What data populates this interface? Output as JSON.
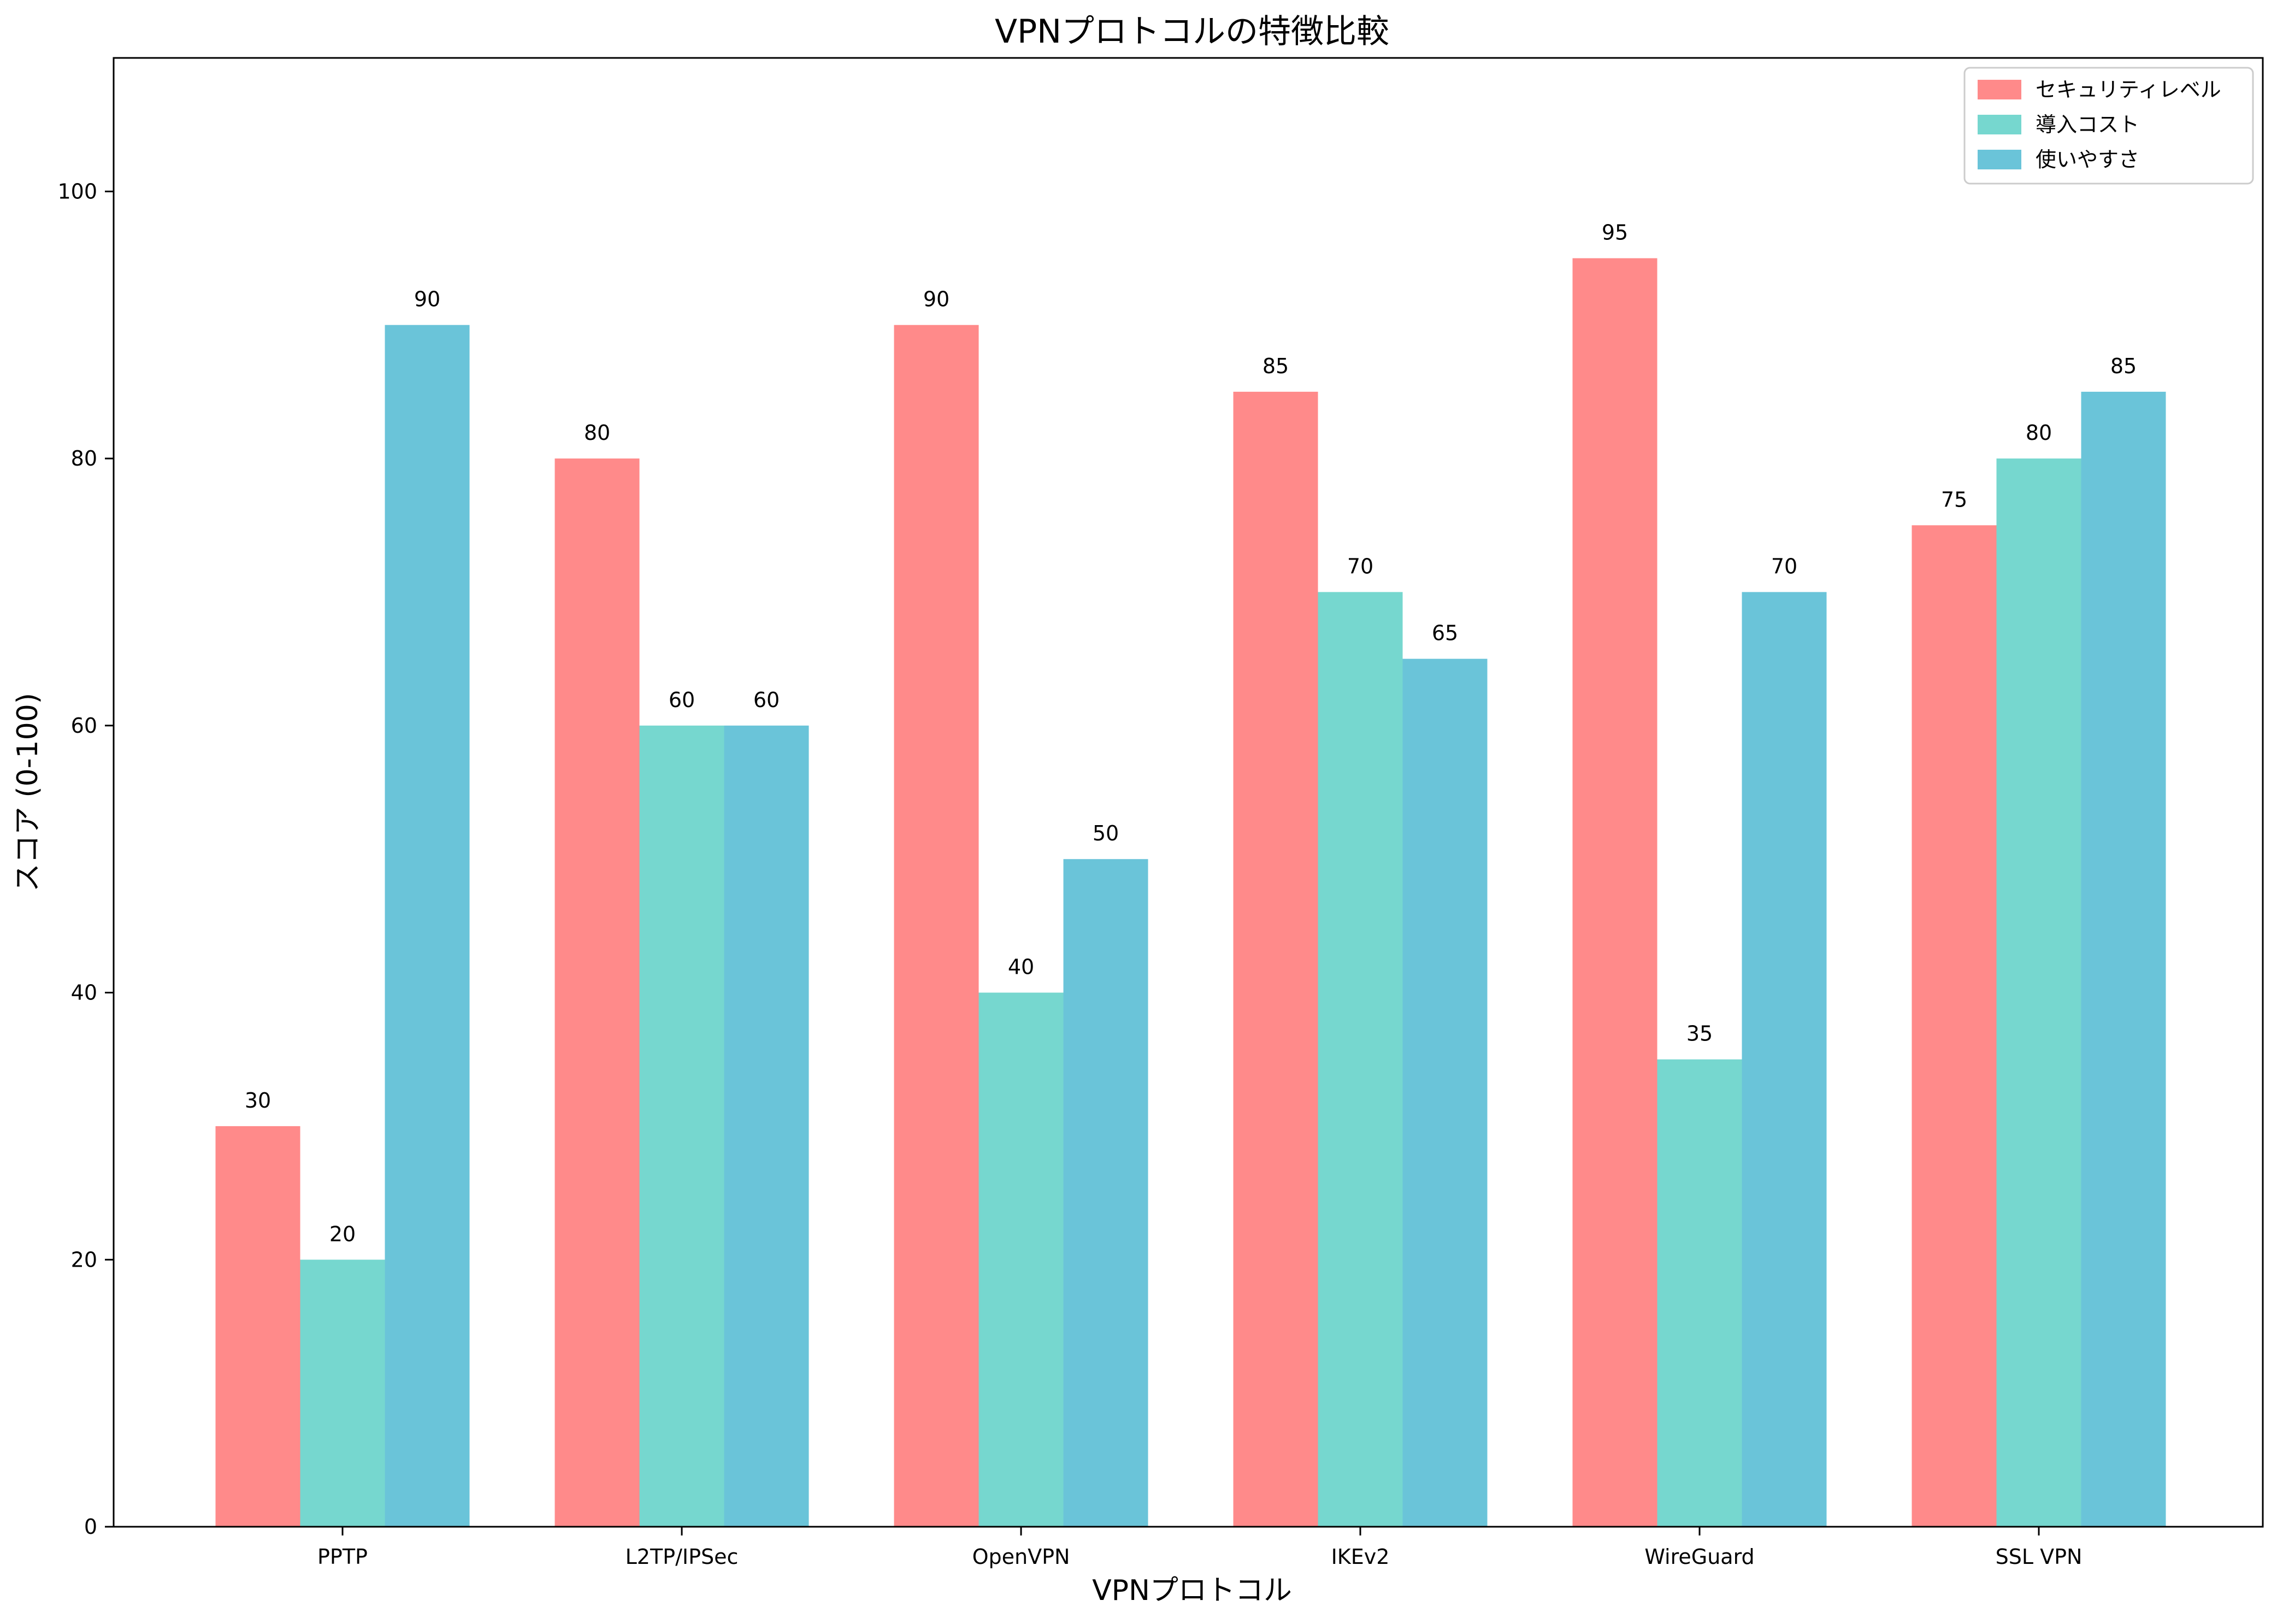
{
  "chart_data": {
    "type": "bar",
    "title": "VPNプロトコルの特徴比較",
    "xlabel": "VPNプロトコル",
    "ylabel": "スコア (0-100)",
    "ylim": [
      0,
      110
    ],
    "yticks": [
      0,
      20,
      40,
      60,
      80,
      100
    ],
    "grid": false,
    "legend_position": "top-right",
    "categories": [
      "PPTP",
      "L2TP/IPSec",
      "OpenVPN",
      "IKEv2",
      "WireGuard",
      "SSL VPN"
    ],
    "series": [
      {
        "name": "セキュリティレベル",
        "color": "#FF8A8A",
        "values": [
          30,
          80,
          90,
          85,
          95,
          75
        ]
      },
      {
        "name": "導入コスト",
        "color": "#76D7CF",
        "values": [
          20,
          60,
          40,
          70,
          35,
          80
        ]
      },
      {
        "name": "使いやすさ",
        "color": "#6AC4D9",
        "values": [
          90,
          60,
          50,
          65,
          70,
          85
        ]
      }
    ]
  }
}
